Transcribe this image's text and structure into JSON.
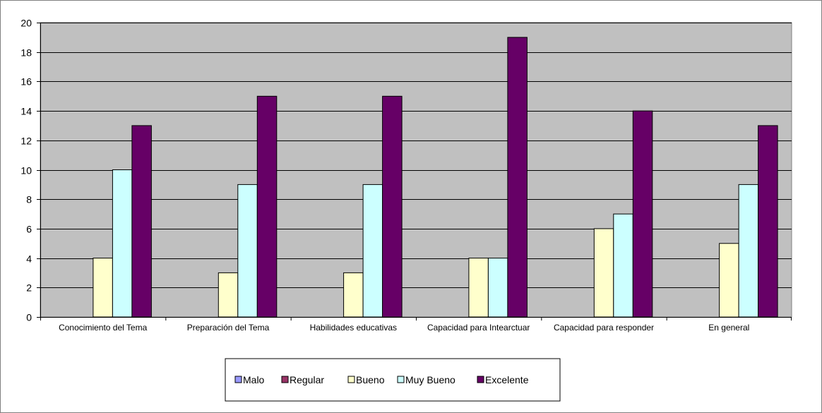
{
  "chart_data": {
    "type": "bar",
    "title": "",
    "xlabel": "",
    "ylabel": "",
    "ylim": [
      0,
      20
    ],
    "ytick_step": 2,
    "grid": true,
    "legend_position": "bottom",
    "categories": [
      "Conocimiento del Tema",
      "Preparación del Tema",
      "Habilidades educativas",
      "Capacidad para Intearctuar",
      "Capacidad para responder",
      "En general"
    ],
    "series": [
      {
        "name": "Malo",
        "color": "#9999FF",
        "values": [
          0,
          0,
          0,
          0,
          0,
          0
        ]
      },
      {
        "name": "Regular",
        "color": "#993366",
        "values": [
          0,
          0,
          0,
          0,
          0,
          0
        ]
      },
      {
        "name": "Bueno",
        "color": "#FFFFCC",
        "values": [
          4,
          3,
          3,
          4,
          6,
          5
        ]
      },
      {
        "name": "Muy Bueno",
        "color": "#CCFFFF",
        "values": [
          10,
          9,
          9,
          4,
          7,
          9
        ]
      },
      {
        "name": "Excelente",
        "color": "#660066",
        "values": [
          13,
          15,
          15,
          19,
          14,
          13
        ]
      }
    ],
    "colors": {
      "plot_background": "#C0C0C0",
      "gridline": "#000000",
      "bar_outline": "#000000"
    }
  }
}
